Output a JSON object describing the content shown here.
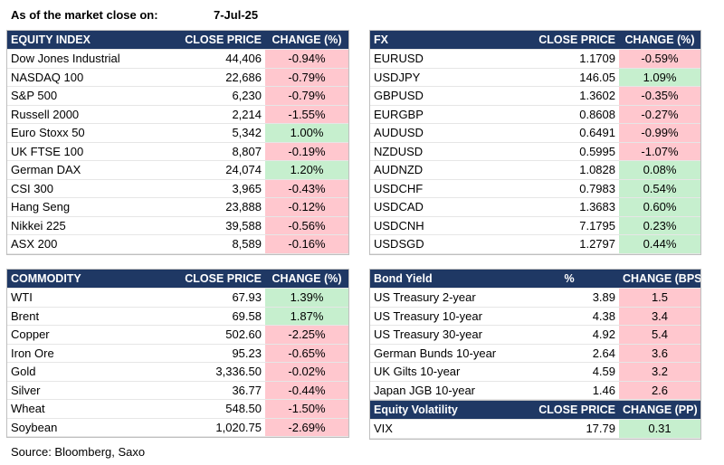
{
  "header": {
    "label": "As of the market close on:",
    "date": "7-Jul-25"
  },
  "source": "Source: Bloomberg, Saxo",
  "equity": {
    "headers": [
      "EQUITY INDEX",
      "CLOSE PRICE",
      "CHANGE (%)"
    ],
    "rows": [
      {
        "name": "Dow Jones Industrial",
        "price": "44,406",
        "change": "-0.94%",
        "dir": "neg"
      },
      {
        "name": "NASDAQ 100",
        "price": "22,686",
        "change": "-0.79%",
        "dir": "neg"
      },
      {
        "name": "S&P 500",
        "price": "6,230",
        "change": "-0.79%",
        "dir": "neg"
      },
      {
        "name": "Russell 2000",
        "price": "2,214",
        "change": "-1.55%",
        "dir": "neg"
      },
      {
        "name": "Euro Stoxx 50",
        "price": "5,342",
        "change": "1.00%",
        "dir": "pos"
      },
      {
        "name": "UK FTSE 100",
        "price": "8,807",
        "change": "-0.19%",
        "dir": "neg"
      },
      {
        "name": "German DAX",
        "price": "24,074",
        "change": "1.20%",
        "dir": "pos"
      },
      {
        "name": "CSI 300",
        "price": "3,965",
        "change": "-0.43%",
        "dir": "neg"
      },
      {
        "name": "Hang Seng",
        "price": "23,888",
        "change": "-0.12%",
        "dir": "neg"
      },
      {
        "name": "Nikkei 225",
        "price": "39,588",
        "change": "-0.56%",
        "dir": "neg"
      },
      {
        "name": "ASX 200",
        "price": "8,589",
        "change": "-0.16%",
        "dir": "neg"
      }
    ]
  },
  "fx": {
    "headers": [
      "FX",
      "CLOSE PRICE",
      "CHANGE (%)"
    ],
    "rows": [
      {
        "name": "EURUSD",
        "price": "1.1709",
        "change": "-0.59%",
        "dir": "neg"
      },
      {
        "name": "USDJPY",
        "price": "146.05",
        "change": "1.09%",
        "dir": "pos"
      },
      {
        "name": "GBPUSD",
        "price": "1.3602",
        "change": "-0.35%",
        "dir": "neg"
      },
      {
        "name": "EURGBP",
        "price": "0.8608",
        "change": "-0.27%",
        "dir": "neg"
      },
      {
        "name": "AUDUSD",
        "price": "0.6491",
        "change": "-0.99%",
        "dir": "neg"
      },
      {
        "name": "NZDUSD",
        "price": "0.5995",
        "change": "-1.07%",
        "dir": "neg"
      },
      {
        "name": "AUDNZD",
        "price": "1.0828",
        "change": "0.08%",
        "dir": "pos"
      },
      {
        "name": "USDCHF",
        "price": "0.7983",
        "change": "0.54%",
        "dir": "pos"
      },
      {
        "name": "USDCAD",
        "price": "1.3683",
        "change": "0.60%",
        "dir": "pos"
      },
      {
        "name": "USDCNH",
        "price": "7.1795",
        "change": "0.23%",
        "dir": "pos"
      },
      {
        "name": "USDSGD",
        "price": "1.2797",
        "change": "0.44%",
        "dir": "pos"
      }
    ]
  },
  "commodity": {
    "headers": [
      "COMMODITY",
      "CLOSE PRICE",
      "CHANGE (%)"
    ],
    "rows": [
      {
        "name": "WTI",
        "price": "67.93",
        "change": "1.39%",
        "dir": "pos"
      },
      {
        "name": "Brent",
        "price": "69.58",
        "change": "1.87%",
        "dir": "pos"
      },
      {
        "name": "Copper",
        "price": "502.60",
        "change": "-2.25%",
        "dir": "neg"
      },
      {
        "name": "Iron Ore",
        "price": "95.23",
        "change": "-0.65%",
        "dir": "neg"
      },
      {
        "name": "Gold",
        "price": "3,336.50",
        "change": "-0.02%",
        "dir": "neg"
      },
      {
        "name": "Silver",
        "price": "36.77",
        "change": "-0.44%",
        "dir": "neg"
      },
      {
        "name": "Wheat",
        "price": "548.50",
        "change": "-1.50%",
        "dir": "neg"
      },
      {
        "name": "Soybean",
        "price": "1,020.75",
        "change": "-2.69%",
        "dir": "neg"
      }
    ]
  },
  "bonds": {
    "headers": [
      "Bond Yield",
      "%",
      "CHANGE (BPS)"
    ],
    "rows": [
      {
        "name": "US Treasury 2-year",
        "price": "3.89",
        "change": "1.5",
        "dir": "neg"
      },
      {
        "name": "US Treasury 10-year",
        "price": "4.38",
        "change": "3.4",
        "dir": "neg"
      },
      {
        "name": "US Treasury 30-year",
        "price": "4.92",
        "change": "5.4",
        "dir": "neg"
      },
      {
        "name": "German Bunds 10-year",
        "price": "2.64",
        "change": "3.6",
        "dir": "neg"
      },
      {
        "name": "UK Gilts 10-year",
        "price": "4.59",
        "change": "3.2",
        "dir": "neg"
      },
      {
        "name": "Japan JGB 10-year",
        "price": "1.46",
        "change": "2.6",
        "dir": "neg"
      }
    ]
  },
  "volatility": {
    "headers": [
      "Equity Volatility",
      "CLOSE PRICE",
      "CHANGE (PP)"
    ],
    "rows": [
      {
        "name": "VIX",
        "price": "17.79",
        "change": "0.31",
        "dir": "pos"
      }
    ]
  }
}
